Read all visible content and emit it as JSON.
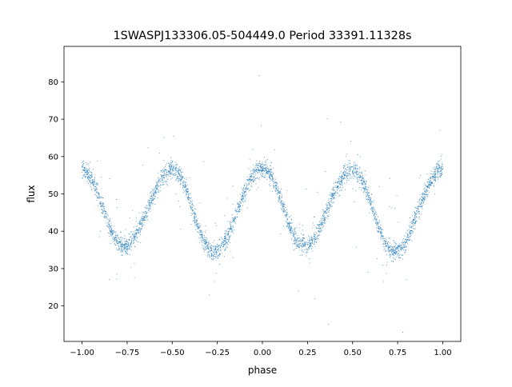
{
  "chart_data": {
    "type": "scatter",
    "title": "1SWASPJ133306.05-504449.0 Period 33391.11328s",
    "xlabel": "phase",
    "ylabel": "flux",
    "xlim": [
      -1.1,
      1.1
    ],
    "ylim": [
      10.5,
      89.5
    ],
    "xticks": [
      -1.0,
      -0.75,
      -0.5,
      -0.25,
      0.0,
      0.25,
      0.5,
      0.75,
      1.0
    ],
    "xtick_labels": [
      "−1.00",
      "−0.75",
      "−0.50",
      "−0.25",
      "0.00",
      "0.25",
      "0.50",
      "0.75",
      "1.00"
    ],
    "yticks": [
      20,
      30,
      40,
      50,
      60,
      70,
      80
    ],
    "ytick_labels": [
      "20",
      "30",
      "40",
      "50",
      "60",
      "70",
      "80"
    ],
    "grid": false,
    "marker_color": "#1f77b4",
    "light_curve_shape": {
      "period_in_phase": 0.5,
      "maxima": [
        {
          "x": -1.0,
          "y": 56.5
        },
        {
          "x": -0.5,
          "y": 56.5
        },
        {
          "x": 0.0,
          "y": 57.0
        },
        {
          "x": 0.5,
          "y": 56.5
        },
        {
          "x": 1.0,
          "y": 56.5
        }
      ],
      "minima": [
        {
          "x": -0.77,
          "y": 36.0
        },
        {
          "x": -0.27,
          "y": 34.5
        },
        {
          "x": 0.23,
          "y": 36.0
        },
        {
          "x": 0.73,
          "y": 34.5
        }
      ],
      "scatter_sigma": 1.2
    }
  }
}
